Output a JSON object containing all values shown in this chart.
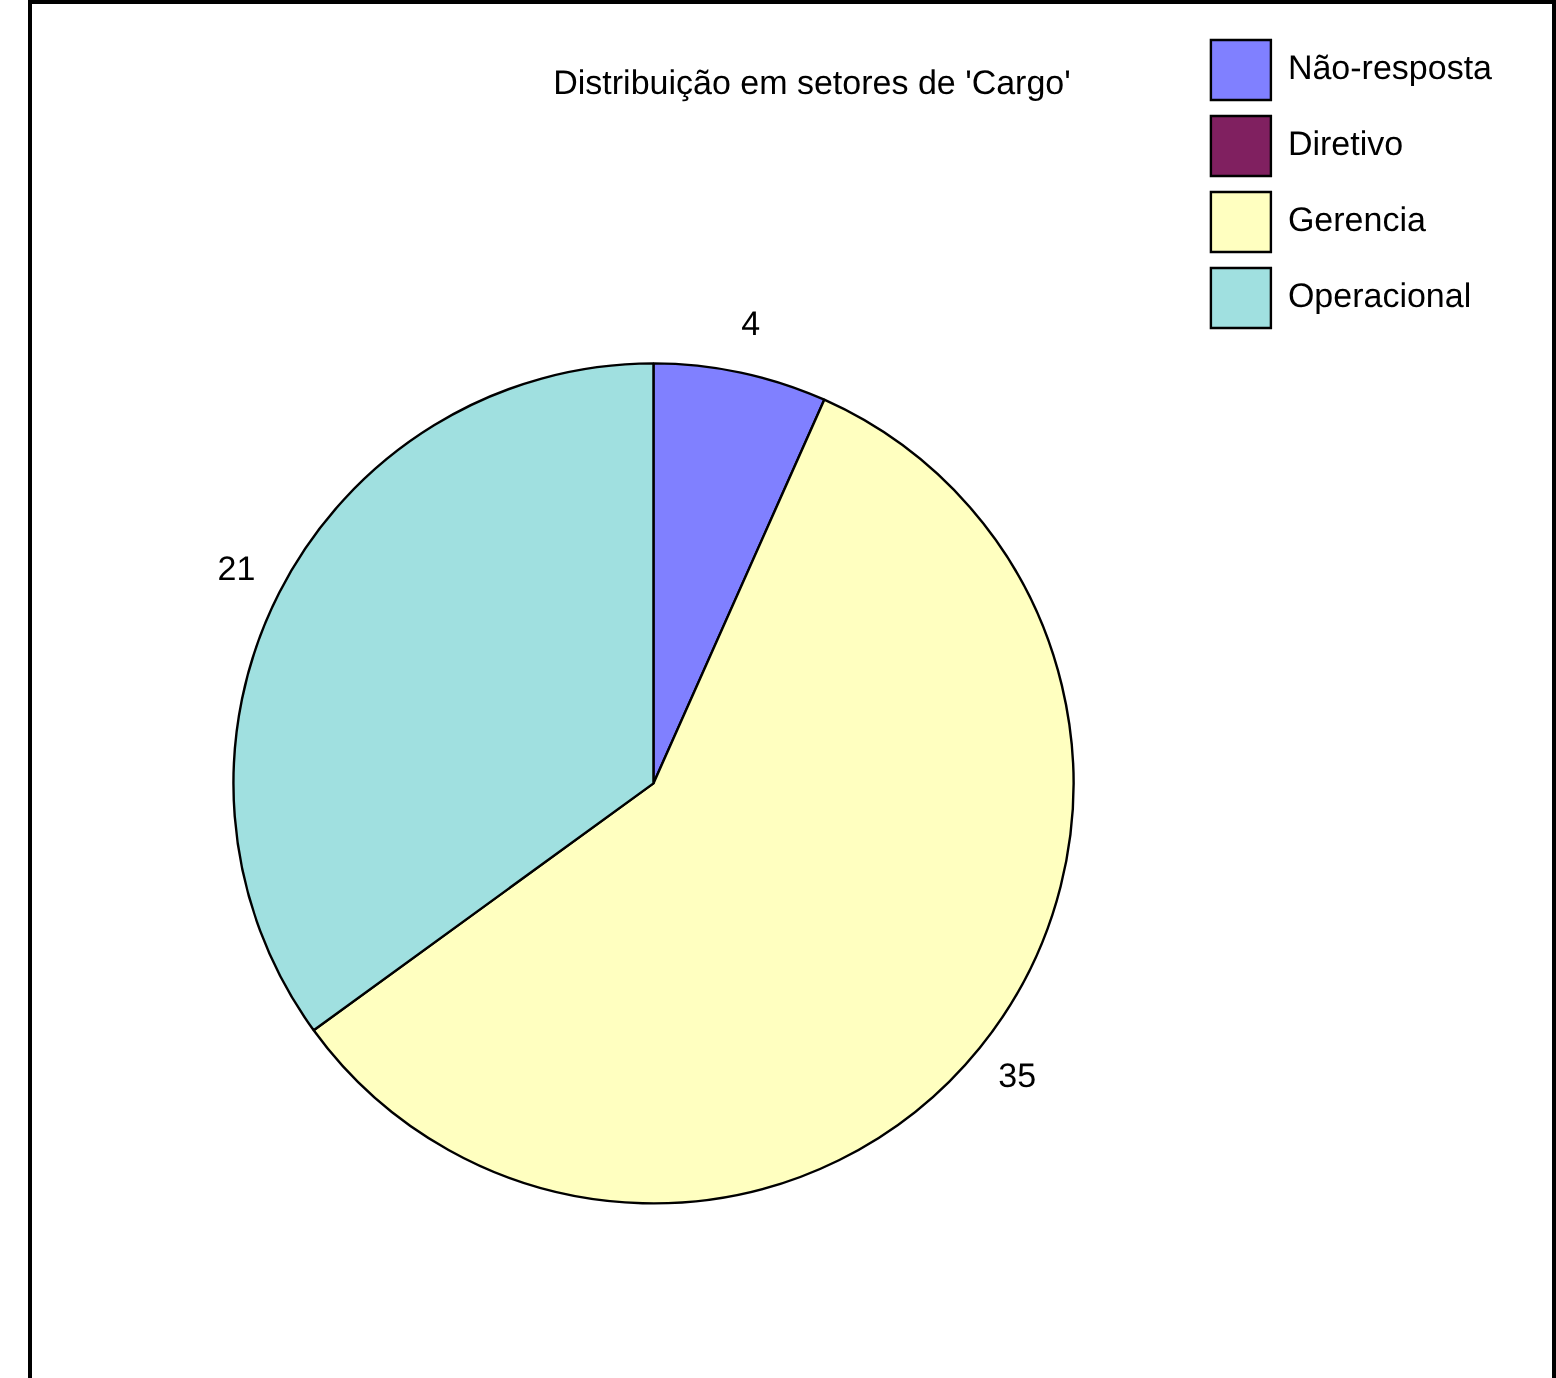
{
  "chart_data": {
    "type": "pie",
    "title": "Distribuição em setores de 'Cargo'",
    "categories": [
      "Não-resposta",
      "Diretivo",
      "Gerencia",
      "Operacional"
    ],
    "values": [
      4,
      0,
      35,
      21
    ],
    "value_labels": [
      "4",
      null,
      "35",
      "21"
    ],
    "colors": [
      "#8080ff",
      "#802060",
      "#ffffc0",
      "#a0e0e0"
    ],
    "legend": "top right"
  }
}
